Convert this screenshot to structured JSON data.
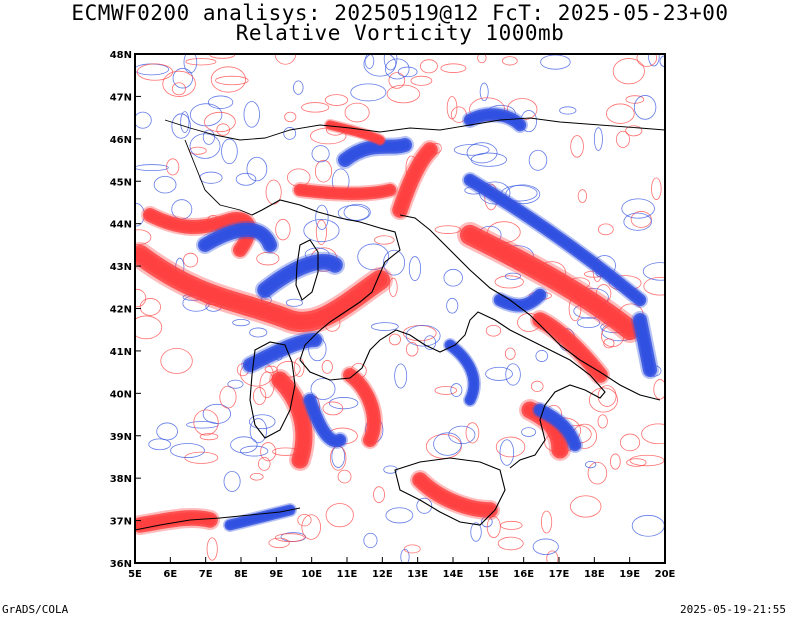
{
  "header": {
    "title_line1": "ECMWF0200 analisys: 20250519@12 FcT: 2025-05-23+00",
    "title_line2": "Relative Vorticity 1000mb"
  },
  "map": {
    "lon_labels": [
      "5E",
      "6E",
      "7E",
      "8E",
      "9E",
      "10E",
      "11E",
      "12E",
      "13E",
      "14E",
      "15E",
      "16E",
      "17E",
      "18E",
      "19E",
      "20E"
    ],
    "lat_labels": [
      "48N",
      "47N",
      "46N",
      "45N",
      "44N",
      "43N",
      "42N",
      "41N",
      "40N",
      "39N",
      "38N",
      "37N",
      "36N"
    ],
    "colors": {
      "positive": "#ff4040",
      "negative": "#3050e0",
      "coast": "#000000"
    }
  },
  "footer": {
    "left": "GrADS/COLA",
    "right": "2025-05-19-21:55"
  }
}
